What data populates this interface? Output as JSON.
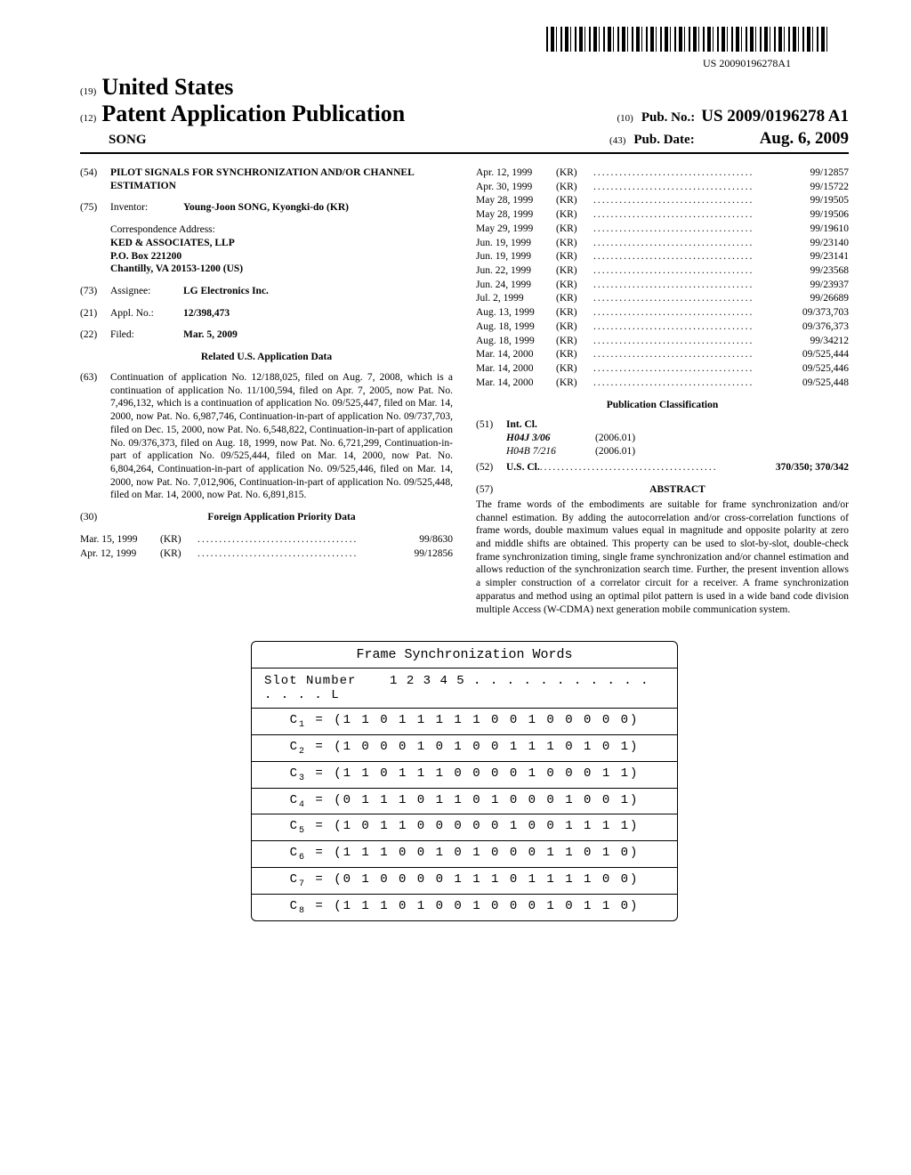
{
  "barcode_text": "US 20090196278A1",
  "header": {
    "kind19": "(19)",
    "us": "United States",
    "kind12": "(12)",
    "patapp": "Patent Application Publication",
    "kind10": "(10)",
    "pubno_label": "Pub. No.:",
    "pubno": "US 2009/0196278 A1",
    "inventor": "SONG",
    "kind43": "(43)",
    "pubdate_label": "Pub. Date:",
    "pubdate": "Aug. 6, 2009"
  },
  "fields": {
    "f54_code": "(54)",
    "f54_title": "PILOT SIGNALS FOR SYNCHRONIZATION AND/OR CHANNEL ESTIMATION",
    "f75_code": "(75)",
    "f75_label": "Inventor:",
    "f75_body": "Young-Joon SONG, Kyongki-do (KR)",
    "corr_label": "Correspondence Address:",
    "corr_body": "KED & ASSOCIATES, LLP\nP.O. Box 221200\nChantilly, VA 20153-1200 (US)",
    "f73_code": "(73)",
    "f73_label": "Assignee:",
    "f73_body": "LG Electronics Inc.",
    "f21_code": "(21)",
    "f21_label": "Appl. No.:",
    "f21_body": "12/398,473",
    "f22_code": "(22)",
    "f22_label": "Filed:",
    "f22_body": "Mar. 5, 2009",
    "related_heading": "Related U.S. Application Data",
    "f63_code": "(63)",
    "f63_body": "Continuation of application No. 12/188,025, filed on Aug. 7, 2008, which is a continuation of application No. 11/100,594, filed on Apr. 7, 2005, now Pat. No. 7,496,132, which is a continuation of application No. 09/525,447, filed on Mar. 14, 2000, now Pat. No. 6,987,746, Continuation-in-part of application No. 09/737,703, filed on Dec. 15, 2000, now Pat. No. 6,548,822, Continuation-in-part of application No. 09/376,373, filed on Aug. 18, 1999, now Pat. No. 6,721,299, Continuation-in-part of application No. 09/525,444, filed on Mar. 14, 2000, now Pat. No. 6,804,264, Continuation-in-part of application No. 09/525,446, filed on Mar. 14, 2000, now Pat. No. 7,012,906, Continuation-in-part of application No. 09/525,448, filed on Mar. 14, 2000, now Pat. No. 6,891,815.",
    "f30_code": "(30)",
    "f30_heading": "Foreign Application Priority Data"
  },
  "priority_left": [
    {
      "date": "Mar. 15, 1999",
      "country": "(KR)",
      "num": "99/8630"
    },
    {
      "date": "Apr. 12, 1999",
      "country": "(KR)",
      "num": "99/12856"
    }
  ],
  "priority_right": [
    {
      "date": "Apr. 12, 1999",
      "country": "(KR)",
      "num": "99/12857"
    },
    {
      "date": "Apr. 30, 1999",
      "country": "(KR)",
      "num": "99/15722"
    },
    {
      "date": "May 28, 1999",
      "country": "(KR)",
      "num": "99/19505"
    },
    {
      "date": "May 28, 1999",
      "country": "(KR)",
      "num": "99/19506"
    },
    {
      "date": "May 29, 1999",
      "country": "(KR)",
      "num": "99/19610"
    },
    {
      "date": "Jun. 19, 1999",
      "country": "(KR)",
      "num": "99/23140"
    },
    {
      "date": "Jun. 19, 1999",
      "country": "(KR)",
      "num": "99/23141"
    },
    {
      "date": "Jun. 22, 1999",
      "country": "(KR)",
      "num": "99/23568"
    },
    {
      "date": "Jun. 24, 1999",
      "country": "(KR)",
      "num": "99/23937"
    },
    {
      "date": "Jul. 2, 1999",
      "country": "(KR)",
      "num": "99/26689"
    },
    {
      "date": "Aug. 13, 1999",
      "country": "(KR)",
      "num": "09/373,703"
    },
    {
      "date": "Aug. 18, 1999",
      "country": "(KR)",
      "num": "09/376,373"
    },
    {
      "date": "Aug. 18, 1999",
      "country": "(KR)",
      "num": "99/34212"
    },
    {
      "date": "Mar. 14, 2000",
      "country": "(KR)",
      "num": "09/525,444"
    },
    {
      "date": "Mar. 14, 2000",
      "country": "(KR)",
      "num": "09/525,446"
    },
    {
      "date": "Mar. 14, 2000",
      "country": "(KR)",
      "num": "09/525,448"
    }
  ],
  "pub_class_heading": "Publication Classification",
  "intcl": {
    "code": "(51)",
    "label": "Int. Cl.",
    "rows": [
      {
        "code": "H04J 3/06",
        "ver": "(2006.01)",
        "bold": true
      },
      {
        "code": "H04B 7/216",
        "ver": "(2006.01)",
        "bold": false
      }
    ]
  },
  "uscl": {
    "code": "(52)",
    "label": "U.S. Cl.",
    "value": "370/350; 370/342"
  },
  "abstract": {
    "code": "(57)",
    "heading": "ABSTRACT",
    "text": "The frame words of the embodiments are suitable for frame synchronization and/or channel estimation. By adding the autocorrelation and/or cross-correlation functions of frame words, double maximum values equal in magnitude and opposite polarity at zero and middle shifts are obtained. This property can be used to slot-by-slot, double-check frame synchronization timing, single frame synchronization and/or channel estimation and allows reduction of the synchronization search time. Further, the present invention allows a simpler construction of a correlator circuit for a receiver. A frame synchronization apparatus and method using an optimal pilot pattern is used in a wide band code division multiple Access (W-CDMA) next generation mobile communication system."
  },
  "figure": {
    "title": "Frame Synchronization Words",
    "slot_label": "Slot Number",
    "slot_values": "1 2 3 4 5 . . . . . . . . . . . . . . . L",
    "rows": [
      {
        "label": "C",
        "sub": "1",
        "seq": "= (1 1 0 1 1 1 1 1 0 0 1 0 0 0 0 0)"
      },
      {
        "label": "C",
        "sub": "2",
        "seq": "= (1 0 0 0 1 0 1 0 0 1 1 1 0 1 0 1)"
      },
      {
        "label": "C",
        "sub": "3",
        "seq": "= (1 1 0 1 1 1 0 0 0 0 1 0 0 0 1 1)"
      },
      {
        "label": "C",
        "sub": "4",
        "seq": "= (0 1 1 1 0 1 1 0 1 0 0 0 1 0 0 1)"
      },
      {
        "label": "C",
        "sub": "5",
        "seq": "= (1 0 1 1 0 0 0 0 0 1 0 0 1 1 1 1)"
      },
      {
        "label": "C",
        "sub": "6",
        "seq": "= (1 1 1 0 0 1 0 1 0 0 0 1 1 0 1 0)"
      },
      {
        "label": "C",
        "sub": "7",
        "seq": "= (0 1 0 0 0 0 1 1 1 0 1 1 1 1 0 0)"
      },
      {
        "label": "C",
        "sub": "8",
        "seq": "= (1 1 1 0 1 0 0 1 0 0 0 1 0 1 1 0)"
      }
    ]
  }
}
